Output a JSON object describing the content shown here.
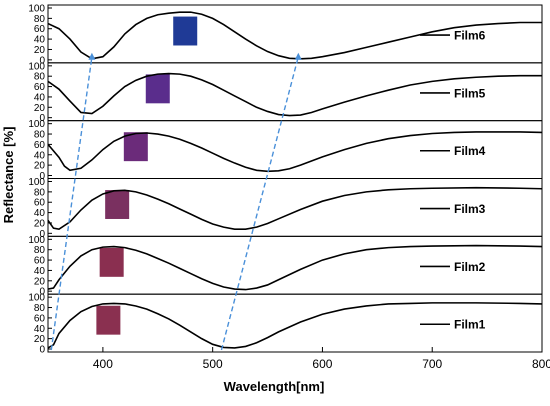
{
  "chart_data": {
    "type": "line",
    "ylabel": "Reflectance [%]",
    "xlabel": "Wavelength[nm]",
    "xlim": [
      350,
      800
    ],
    "ylim": [
      0,
      100
    ],
    "x_ticks": [
      400,
      500,
      600,
      700,
      800
    ],
    "y_ticks": [
      0,
      20,
      40,
      60,
      80,
      100
    ],
    "legend_placement": "right",
    "grid": false,
    "guide_line_color": "#4a90d9",
    "panels": [
      {
        "name": "Film6",
        "swatch_color": "#1f3a96",
        "swatch_x": 475,
        "points": [
          [
            350,
            70
          ],
          [
            360,
            60
          ],
          [
            370,
            40
          ],
          [
            380,
            15
          ],
          [
            390,
            2
          ],
          [
            400,
            6
          ],
          [
            410,
            25
          ],
          [
            420,
            50
          ],
          [
            430,
            68
          ],
          [
            440,
            80
          ],
          [
            450,
            87
          ],
          [
            460,
            90
          ],
          [
            470,
            92
          ],
          [
            480,
            92
          ],
          [
            490,
            88
          ],
          [
            500,
            80
          ],
          [
            510,
            68
          ],
          [
            520,
            54
          ],
          [
            530,
            40
          ],
          [
            540,
            27
          ],
          [
            550,
            16
          ],
          [
            560,
            8
          ],
          [
            570,
            3
          ],
          [
            580,
            2
          ],
          [
            590,
            3
          ],
          [
            600,
            6
          ],
          [
            620,
            14
          ],
          [
            640,
            24
          ],
          [
            660,
            34
          ],
          [
            680,
            44
          ],
          [
            700,
            54
          ],
          [
            720,
            62
          ],
          [
            740,
            67
          ],
          [
            760,
            70
          ],
          [
            780,
            72
          ],
          [
            800,
            72
          ]
        ]
      },
      {
        "name": "Film5",
        "swatch_color": "#5a2d8c",
        "swatch_x": 450,
        "points": [
          [
            350,
            70
          ],
          [
            360,
            55
          ],
          [
            370,
            32
          ],
          [
            380,
            10
          ],
          [
            390,
            8
          ],
          [
            400,
            22
          ],
          [
            410,
            42
          ],
          [
            420,
            60
          ],
          [
            430,
            72
          ],
          [
            440,
            80
          ],
          [
            450,
            84
          ],
          [
            460,
            85
          ],
          [
            470,
            84
          ],
          [
            480,
            80
          ],
          [
            490,
            73
          ],
          [
            500,
            64
          ],
          [
            510,
            53
          ],
          [
            520,
            42
          ],
          [
            530,
            31
          ],
          [
            540,
            20
          ],
          [
            550,
            12
          ],
          [
            560,
            6
          ],
          [
            570,
            4
          ],
          [
            580,
            5
          ],
          [
            590,
            10
          ],
          [
            600,
            17
          ],
          [
            620,
            30
          ],
          [
            640,
            42
          ],
          [
            660,
            53
          ],
          [
            680,
            63
          ],
          [
            700,
            70
          ],
          [
            720,
            75
          ],
          [
            740,
            78
          ],
          [
            760,
            80
          ],
          [
            780,
            81
          ],
          [
            800,
            81
          ]
        ]
      },
      {
        "name": "Film4",
        "swatch_color": "#6b2b7a",
        "swatch_x": 430,
        "points": [
          [
            350,
            60
          ],
          [
            360,
            35
          ],
          [
            365,
            18
          ],
          [
            370,
            10
          ],
          [
            380,
            14
          ],
          [
            390,
            30
          ],
          [
            400,
            50
          ],
          [
            410,
            66
          ],
          [
            420,
            76
          ],
          [
            430,
            81
          ],
          [
            440,
            82
          ],
          [
            450,
            80
          ],
          [
            460,
            76
          ],
          [
            470,
            70
          ],
          [
            480,
            62
          ],
          [
            490,
            53
          ],
          [
            500,
            43
          ],
          [
            510,
            33
          ],
          [
            520,
            24
          ],
          [
            530,
            16
          ],
          [
            540,
            10
          ],
          [
            550,
            8
          ],
          [
            560,
            9
          ],
          [
            570,
            13
          ],
          [
            580,
            20
          ],
          [
            600,
            36
          ],
          [
            620,
            50
          ],
          [
            640,
            62
          ],
          [
            660,
            71
          ],
          [
            680,
            77
          ],
          [
            700,
            81
          ],
          [
            720,
            83
          ],
          [
            740,
            84
          ],
          [
            760,
            84
          ],
          [
            780,
            84
          ],
          [
            800,
            83
          ]
        ]
      },
      {
        "name": "Film3",
        "swatch_color": "#7a3060",
        "swatch_x": 413,
        "points": [
          [
            350,
            25
          ],
          [
            355,
            10
          ],
          [
            360,
            8
          ],
          [
            370,
            22
          ],
          [
            380,
            45
          ],
          [
            390,
            64
          ],
          [
            400,
            76
          ],
          [
            410,
            82
          ],
          [
            420,
            83
          ],
          [
            430,
            80
          ],
          [
            440,
            74
          ],
          [
            450,
            66
          ],
          [
            460,
            57
          ],
          [
            470,
            47
          ],
          [
            480,
            37
          ],
          [
            490,
            27
          ],
          [
            500,
            18
          ],
          [
            510,
            12
          ],
          [
            520,
            8
          ],
          [
            530,
            8
          ],
          [
            540,
            12
          ],
          [
            550,
            19
          ],
          [
            560,
            28
          ],
          [
            580,
            46
          ],
          [
            600,
            62
          ],
          [
            620,
            73
          ],
          [
            640,
            80
          ],
          [
            660,
            84
          ],
          [
            680,
            86
          ],
          [
            700,
            87
          ],
          [
            740,
            88
          ],
          [
            780,
            87
          ],
          [
            800,
            86
          ]
        ]
      },
      {
        "name": "Film2",
        "swatch_color": "#8a2f50",
        "swatch_x": 408,
        "points": [
          [
            350,
            4
          ],
          [
            355,
            6
          ],
          [
            360,
            22
          ],
          [
            370,
            48
          ],
          [
            380,
            68
          ],
          [
            390,
            80
          ],
          [
            400,
            85
          ],
          [
            410,
            86
          ],
          [
            420,
            84
          ],
          [
            430,
            79
          ],
          [
            440,
            72
          ],
          [
            450,
            63
          ],
          [
            460,
            54
          ],
          [
            470,
            44
          ],
          [
            480,
            34
          ],
          [
            490,
            24
          ],
          [
            500,
            15
          ],
          [
            510,
            8
          ],
          [
            520,
            4
          ],
          [
            530,
            3
          ],
          [
            540,
            6
          ],
          [
            550,
            12
          ],
          [
            560,
            22
          ],
          [
            580,
            42
          ],
          [
            600,
            60
          ],
          [
            620,
            72
          ],
          [
            640,
            80
          ],
          [
            660,
            84
          ],
          [
            680,
            86
          ],
          [
            700,
            87
          ],
          [
            740,
            88
          ],
          [
            780,
            87
          ],
          [
            800,
            86
          ]
        ]
      },
      {
        "name": "Film1",
        "swatch_color": "#8a3050",
        "swatch_x": 405,
        "points": [
          [
            350,
            2
          ],
          [
            355,
            8
          ],
          [
            360,
            30
          ],
          [
            370,
            55
          ],
          [
            380,
            72
          ],
          [
            390,
            82
          ],
          [
            400,
            87
          ],
          [
            410,
            88
          ],
          [
            420,
            87
          ],
          [
            430,
            83
          ],
          [
            440,
            77
          ],
          [
            450,
            68
          ],
          [
            460,
            58
          ],
          [
            470,
            46
          ],
          [
            480,
            33
          ],
          [
            490,
            20
          ],
          [
            500,
            9
          ],
          [
            510,
            3
          ],
          [
            520,
            2
          ],
          [
            530,
            5
          ],
          [
            540,
            12
          ],
          [
            550,
            22
          ],
          [
            560,
            33
          ],
          [
            580,
            52
          ],
          [
            600,
            67
          ],
          [
            620,
            77
          ],
          [
            640,
            83
          ],
          [
            660,
            87
          ],
          [
            680,
            88
          ],
          [
            700,
            89
          ],
          [
            740,
            89
          ],
          [
            780,
            88
          ],
          [
            800,
            87
          ]
        ]
      }
    ],
    "guide_lines": [
      {
        "from": [
          353,
          0
        ],
        "to": [
          390,
          0
        ]
      },
      {
        "from": [
          508,
          0
        ],
        "to": [
          578,
          0
        ]
      }
    ]
  }
}
